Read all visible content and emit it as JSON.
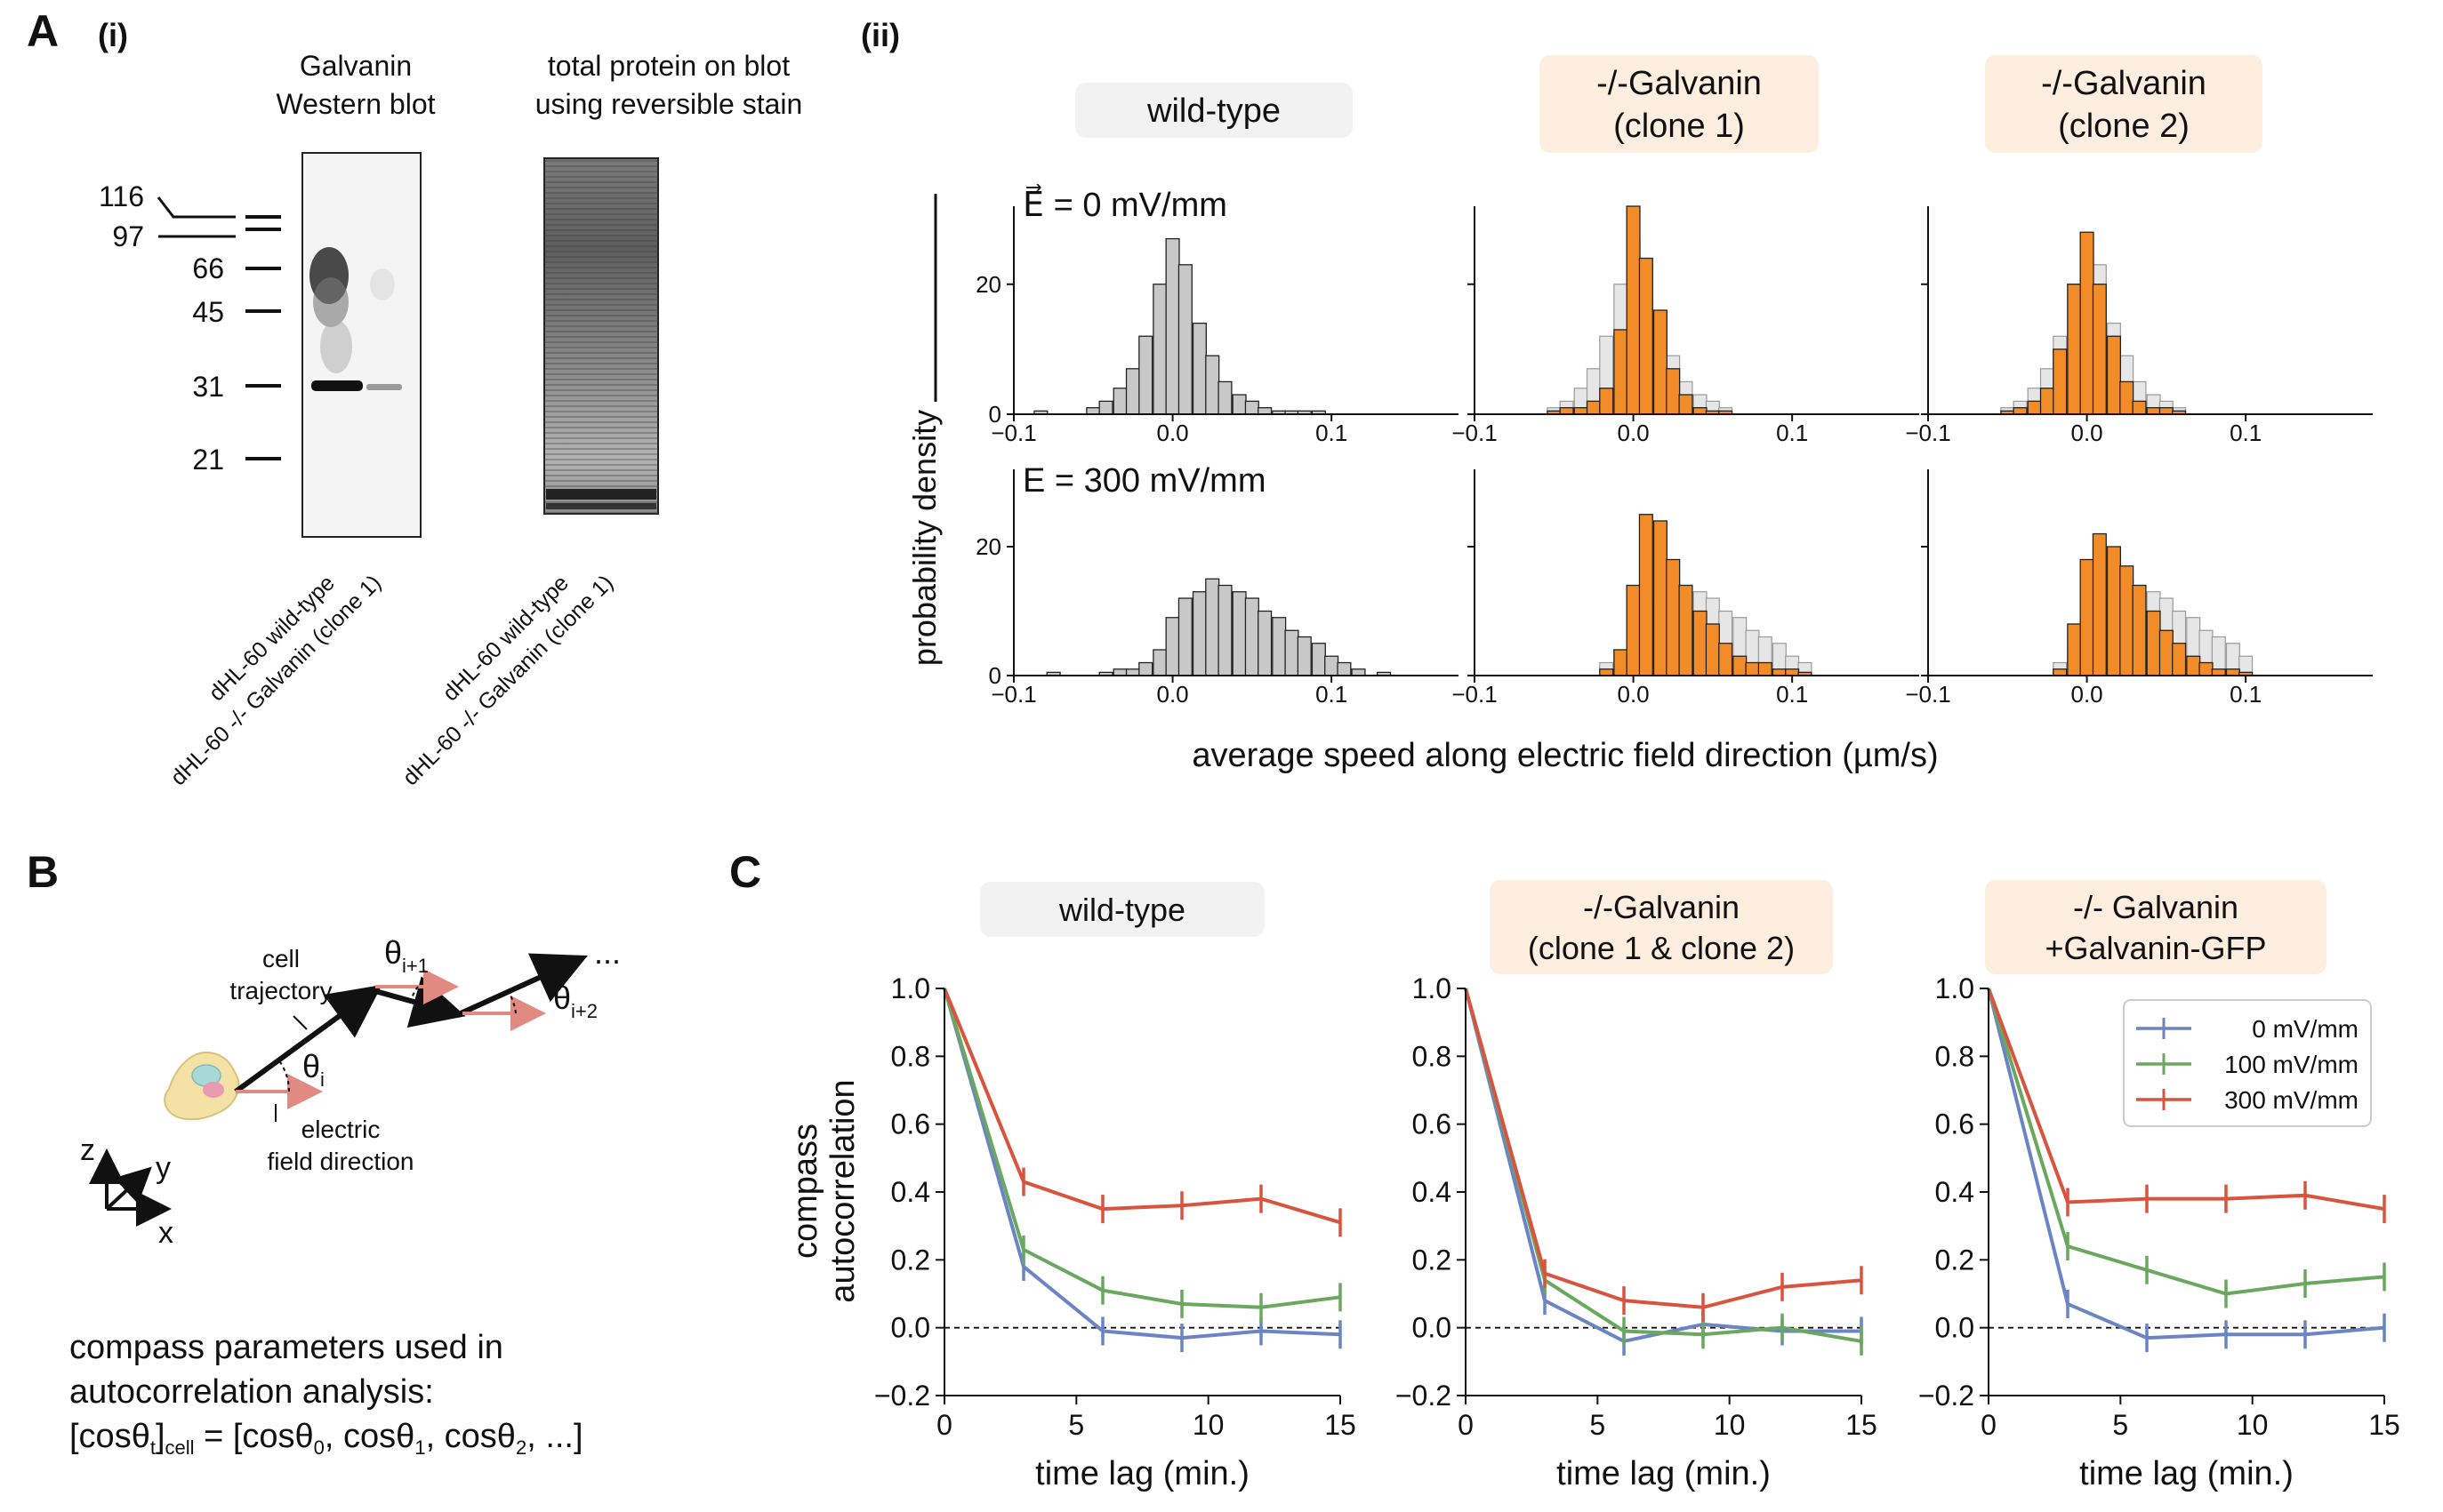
{
  "panel_A": {
    "letter": "A",
    "sub_i": "(i)",
    "sub_ii": "(ii)",
    "blot1_title": [
      "Galvanin",
      "Western blot"
    ],
    "blot2_title": [
      "total protein on blot",
      "using reversible stain"
    ],
    "mw_markers": [
      "116",
      "97",
      "66",
      "45",
      "31",
      "21"
    ],
    "lane_labels": [
      "dHL-60 wild-type",
      "dHL-60 -/- Galvanin (clone 1)"
    ],
    "column_titles": [
      "wild-type",
      "-/-Galvanin\n(clone 1)",
      "-/-Galvanin\n(clone 2)"
    ],
    "row_labels": [
      "E⃗ = 0 mV/mm",
      "E = 300 mV/mm"
    ],
    "ylabel": "probability density",
    "xlabel": "average speed along electric field direction (µm/s)",
    "tick_x": [
      "−0.1",
      "0.0",
      "0.1"
    ],
    "tick_y": [
      "0",
      "20"
    ]
  },
  "panel_B": {
    "letter": "B",
    "cell_trajectory": [
      "cell",
      "trajectory"
    ],
    "electric_field": [
      "electric",
      "field direction"
    ],
    "theta_i": "θ",
    "theta_i_sub": "i",
    "theta_i1_sub": "i+1",
    "theta_i2_sub": "i+2",
    "ellipsis": "...",
    "axes": [
      "z",
      "y",
      "x"
    ],
    "caption_lines": [
      "compass parameters used in",
      "autocorrelation analysis:"
    ],
    "formula": {
      "a": "[cosθ",
      "a_sub": "t",
      "b": "]",
      "b_sub": "cell",
      "c": " = [cosθ",
      "c_sub": "0",
      "d": ", cosθ",
      "d_sub": "1",
      "e": ", cosθ",
      "e_sub": "2",
      "f": ", ...]"
    }
  },
  "panel_C": {
    "letter": "C",
    "titles": [
      "wild-type",
      "-/-Galvanin\n(clone 1 & clone 2)",
      "-/- Galvanin\n+Galvanin-GFP"
    ],
    "ylabel": [
      "compass",
      "autocorrelation"
    ],
    "xlabel": "time lag (min.)",
    "yticks": [
      "−0.2",
      "0.0",
      "0.2",
      "0.4",
      "0.6",
      "0.8",
      "1.0"
    ],
    "xticks": [
      "0",
      "5",
      "10",
      "15"
    ],
    "legend": [
      "0 mV/mm",
      "100 mV/mm",
      "300 mV/mm"
    ]
  },
  "colors": {
    "gray_bar": "#c8c8c8",
    "orange_bar": "#f28c28",
    "blue": "#6b84c4",
    "green": "#6aa85f",
    "red": "#d9543e",
    "title_gray_bg": "#f2f2f2",
    "title_orange_bg": "#fdeedf"
  },
  "chart_data": [
    {
      "type": "bar",
      "title": "wild-type",
      "row": "E = 0 mV/mm",
      "bin_width": 0.0083,
      "x": [
        -0.083,
        -0.075,
        -0.067,
        -0.058,
        -0.05,
        -0.042,
        -0.033,
        -0.025,
        -0.017,
        -0.008,
        0.0,
        0.008,
        0.017,
        0.025,
        0.033,
        0.042,
        0.05,
        0.058,
        0.067,
        0.075,
        0.083,
        0.092
      ],
      "series": [
        {
          "name": "wild-type",
          "values": [
            0.5,
            0,
            0,
            0,
            1,
            2,
            4,
            7,
            12,
            20,
            27,
            23,
            14,
            9,
            5,
            3,
            2,
            1,
            0.5,
            0.5,
            0.5,
            0.5
          ]
        }
      ],
      "xlim": [
        -0.1,
        0.18
      ],
      "ylim": [
        0,
        32
      ]
    },
    {
      "type": "bar",
      "title": "-/-Galvanin (clone 1)",
      "row": "E = 0 mV/mm",
      "x": [
        -0.05,
        -0.042,
        -0.033,
        -0.025,
        -0.017,
        -0.008,
        0.0,
        0.008,
        0.017,
        0.025,
        0.033,
        0.042,
        0.05,
        0.058
      ],
      "series": [
        {
          "name": "-/-Galvanin (clone 1)",
          "values": [
            0.5,
            1,
            1,
            2,
            4,
            13,
            32,
            24,
            16,
            7,
            3,
            1,
            0.5,
            0.5
          ]
        },
        {
          "name": "wild-type",
          "values": [
            1,
            2,
            4,
            7,
            12,
            20,
            27,
            23,
            14,
            9,
            5,
            3,
            2,
            1
          ]
        }
      ],
      "xlim": [
        -0.1,
        0.18
      ],
      "ylim": [
        0,
        32
      ]
    },
    {
      "type": "bar",
      "title": "-/-Galvanin (clone 2)",
      "row": "E = 0 mV/mm",
      "x": [
        -0.05,
        -0.042,
        -0.033,
        -0.025,
        -0.017,
        -0.008,
        0.0,
        0.008,
        0.017,
        0.025,
        0.033,
        0.042,
        0.05,
        0.058
      ],
      "series": [
        {
          "name": "-/-Galvanin (clone 2)",
          "values": [
            0.5,
            1,
            2,
            4,
            10,
            20,
            28,
            20,
            12,
            5,
            2,
            1,
            1,
            0.5
          ]
        },
        {
          "name": "wild-type",
          "values": [
            1,
            2,
            4,
            7,
            12,
            20,
            27,
            23,
            14,
            9,
            5,
            3,
            2,
            1
          ]
        }
      ],
      "xlim": [
        -0.1,
        0.18
      ],
      "ylim": [
        0,
        32
      ]
    },
    {
      "type": "bar",
      "title": "wild-type",
      "row": "E = 300 mV/mm",
      "x": [
        -0.075,
        -0.042,
        -0.033,
        -0.025,
        -0.017,
        -0.008,
        0.0,
        0.008,
        0.017,
        0.025,
        0.033,
        0.042,
        0.05,
        0.058,
        0.067,
        0.075,
        0.083,
        0.092,
        0.1,
        0.108,
        0.117,
        0.133
      ],
      "series": [
        {
          "name": "wild-type",
          "values": [
            0.5,
            0.5,
            1,
            1,
            2,
            4,
            9,
            12,
            13,
            15,
            14,
            13,
            12,
            10,
            9,
            7,
            6,
            5,
            3,
            2,
            1,
            0.5
          ]
        }
      ],
      "xlim": [
        -0.1,
        0.18
      ],
      "ylim": [
        0,
        32
      ]
    },
    {
      "type": "bar",
      "title": "-/-Galvanin (clone 1)",
      "row": "E = 300 mV/mm",
      "x": [
        -0.017,
        -0.008,
        0.0,
        0.008,
        0.017,
        0.025,
        0.033,
        0.042,
        0.05,
        0.058,
        0.067,
        0.075,
        0.083,
        0.092,
        0.1,
        0.108
      ],
      "series": [
        {
          "name": "-/-Galvanin (clone 1)",
          "values": [
            1,
            4,
            14,
            25,
            24,
            18,
            14,
            10,
            8,
            5,
            3,
            2,
            2,
            1,
            1,
            0.5
          ]
        },
        {
          "name": "wild-type",
          "values": [
            2,
            4,
            9,
            12,
            13,
            15,
            14,
            13,
            12,
            10,
            9,
            7,
            6,
            5,
            3,
            2
          ]
        }
      ],
      "xlim": [
        -0.1,
        0.18
      ],
      "ylim": [
        0,
        32
      ]
    },
    {
      "type": "bar",
      "title": "-/-Galvanin (clone 2)",
      "row": "E = 300 mV/mm",
      "x": [
        -0.017,
        -0.008,
        0.0,
        0.008,
        0.017,
        0.025,
        0.033,
        0.042,
        0.05,
        0.058,
        0.067,
        0.075,
        0.083,
        0.092,
        0.1
      ],
      "series": [
        {
          "name": "-/-Galvanin (clone 2)",
          "values": [
            1,
            8,
            18,
            22,
            20,
            17,
            14,
            10,
            7,
            5,
            3,
            2,
            1,
            1,
            0.5
          ]
        },
        {
          "name": "wild-type",
          "values": [
            2,
            4,
            9,
            12,
            13,
            15,
            14,
            13,
            12,
            10,
            9,
            7,
            6,
            5,
            3
          ]
        }
      ],
      "xlim": [
        -0.1,
        0.18
      ],
      "ylim": [
        0,
        32
      ]
    },
    {
      "type": "line",
      "title": "wild-type",
      "x": [
        0,
        3,
        6,
        9,
        12,
        15
      ],
      "series": [
        {
          "name": "0 mV/mm",
          "values": [
            1.0,
            0.18,
            -0.01,
            -0.03,
            -0.01,
            -0.02
          ]
        },
        {
          "name": "100 mV/mm",
          "values": [
            1.0,
            0.23,
            0.11,
            0.07,
            0.06,
            0.09
          ]
        },
        {
          "name": "300 mV/mm",
          "values": [
            1.0,
            0.43,
            0.35,
            0.36,
            0.38,
            0.31
          ]
        }
      ],
      "xlabel": "time lag (min.)",
      "ylabel": "compass autocorrelation",
      "xlim": [
        0,
        15
      ],
      "ylim": [
        -0.2,
        1.0
      ]
    },
    {
      "type": "line",
      "title": "-/-Galvanin (clone 1 & clone 2)",
      "x": [
        0,
        3,
        6,
        9,
        12,
        15
      ],
      "series": [
        {
          "name": "0 mV/mm",
          "values": [
            1.0,
            0.08,
            -0.04,
            0.01,
            -0.01,
            -0.01
          ]
        },
        {
          "name": "100 mV/mm",
          "values": [
            1.0,
            0.14,
            -0.01,
            -0.02,
            0.0,
            -0.04
          ]
        },
        {
          "name": "300 mV/mm",
          "values": [
            1.0,
            0.16,
            0.08,
            0.06,
            0.12,
            0.14
          ]
        }
      ],
      "xlabel": "time lag (min.)",
      "xlim": [
        0,
        15
      ],
      "ylim": [
        -0.2,
        1.0
      ]
    },
    {
      "type": "line",
      "title": "-/- Galvanin +Galvanin-GFP",
      "x": [
        0,
        3,
        6,
        9,
        12,
        15
      ],
      "series": [
        {
          "name": "0 mV/mm",
          "values": [
            1.0,
            0.07,
            -0.03,
            -0.02,
            -0.02,
            0.0
          ]
        },
        {
          "name": "100 mV/mm",
          "values": [
            1.0,
            0.24,
            0.17,
            0.1,
            0.13,
            0.15
          ]
        },
        {
          "name": "300 mV/mm",
          "values": [
            1.0,
            0.37,
            0.38,
            0.38,
            0.39,
            0.35
          ]
        }
      ],
      "xlabel": "time lag (min.)",
      "xlim": [
        0,
        15
      ],
      "ylim": [
        -0.2,
        1.0
      ],
      "legend": "top-right"
    }
  ]
}
